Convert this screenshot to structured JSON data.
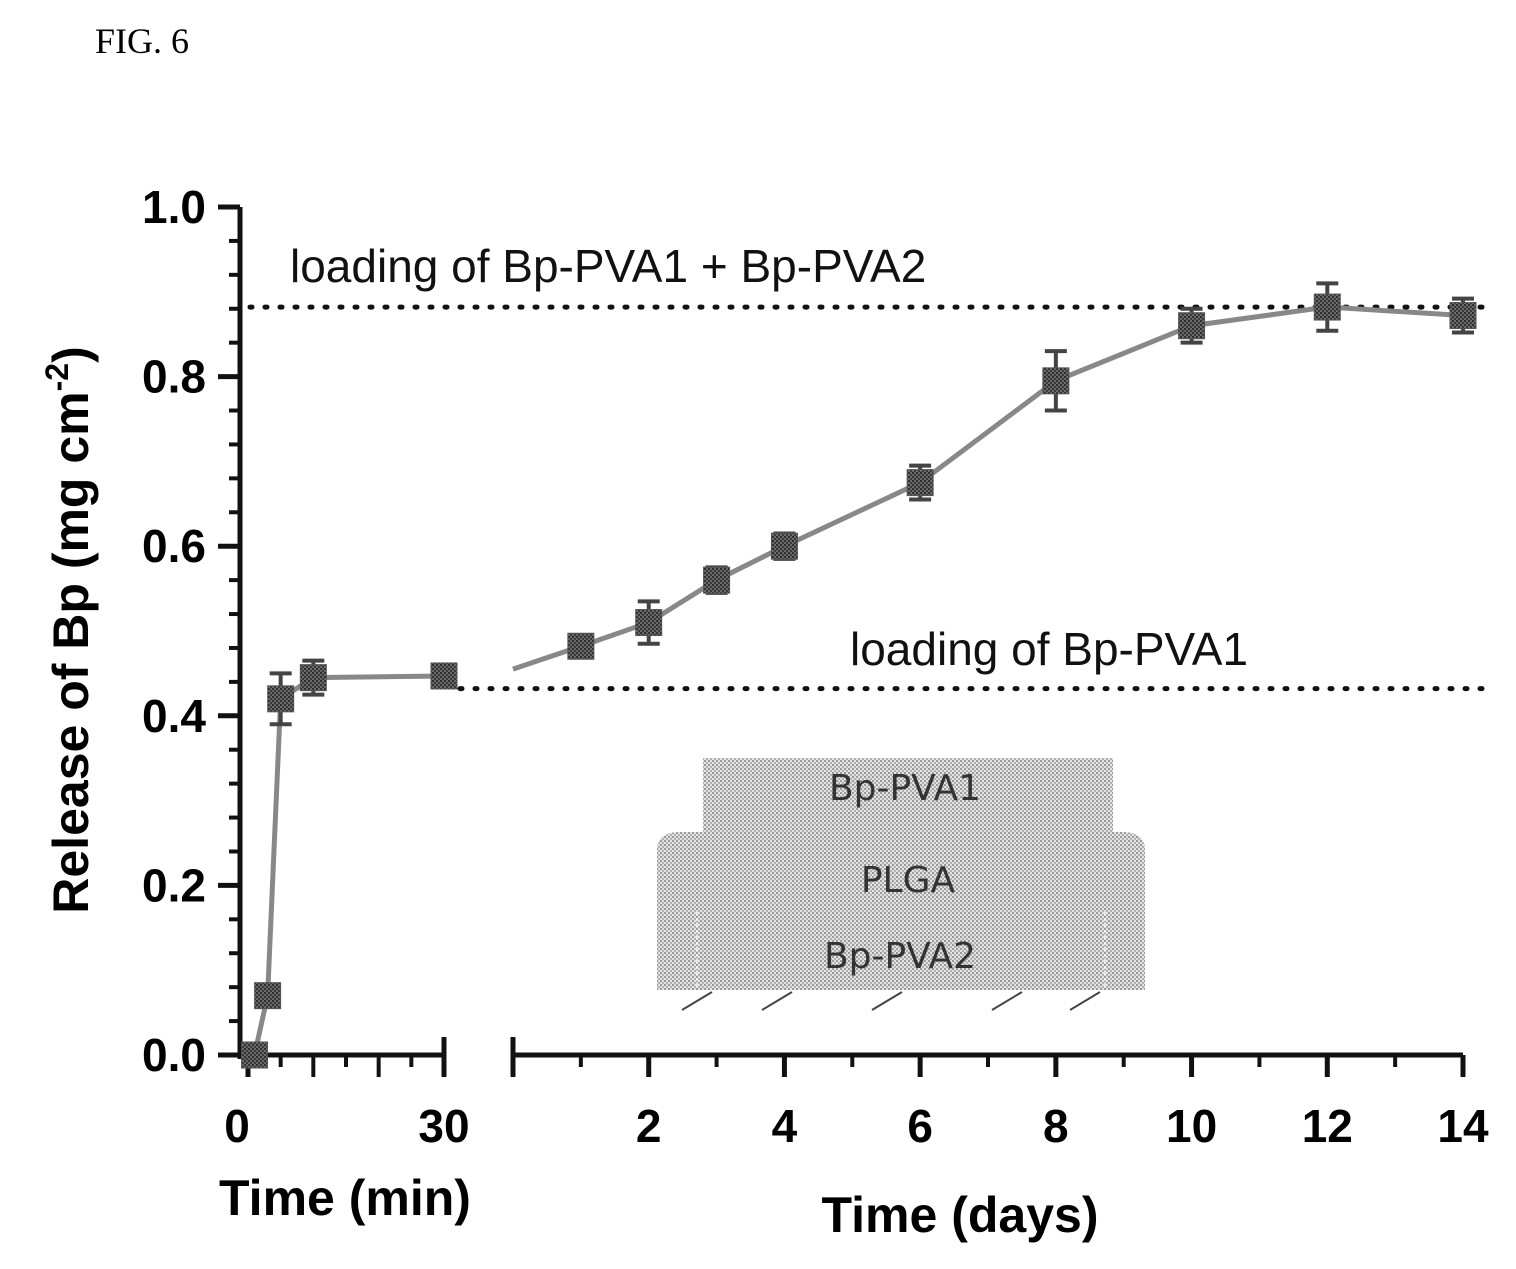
{
  "figure_label": "FIG. 6",
  "chart_data": {
    "type": "line",
    "title": "",
    "ylabel": "Release of Bp (mg cm",
    "ylabel_sup": "-2",
    "ylabel_close": ")",
    "ylim": [
      0,
      1.0
    ],
    "yticks": [
      "0.0",
      "0.2",
      "0.4",
      "0.6",
      "0.8",
      "1.0"
    ],
    "panels": [
      {
        "xlabel": "Time (min)",
        "xlim": [
          0,
          30
        ],
        "xticks": [
          "0",
          "30"
        ],
        "x": [
          1,
          3,
          5,
          10,
          30
        ],
        "y": [
          0.0,
          0.07,
          0.42,
          0.445,
          0.447
        ],
        "err": [
          0.0,
          0.01,
          0.03,
          0.02,
          0.01
        ]
      },
      {
        "xlabel": "Time (days)",
        "xlim": [
          0,
          14
        ],
        "xticks": [
          "2",
          "4",
          "6",
          "8",
          "10",
          "12",
          "14"
        ],
        "x": [
          0,
          1,
          2,
          3,
          4,
          6,
          8,
          10,
          12,
          14
        ],
        "y": [
          0.455,
          0.482,
          0.51,
          0.56,
          0.6,
          0.675,
          0.795,
          0.86,
          0.882,
          0.872
        ],
        "err": [
          0.0,
          0.01,
          0.025,
          0.015,
          0.015,
          0.02,
          0.035,
          0.02,
          0.028,
          0.02
        ]
      }
    ],
    "reference_lines": [
      {
        "label": "loading of Bp-PVA1 + Bp-PVA2",
        "y": 0.882
      },
      {
        "label": "loading of Bp-PVA1",
        "y": 0.432
      }
    ],
    "inset_layers": [
      "Bp-PVA1",
      "PLGA",
      "Bp-PVA2"
    ],
    "grid": false,
    "colors": {
      "marker": "#555555",
      "line": "#888888",
      "axis": "#111111"
    }
  }
}
